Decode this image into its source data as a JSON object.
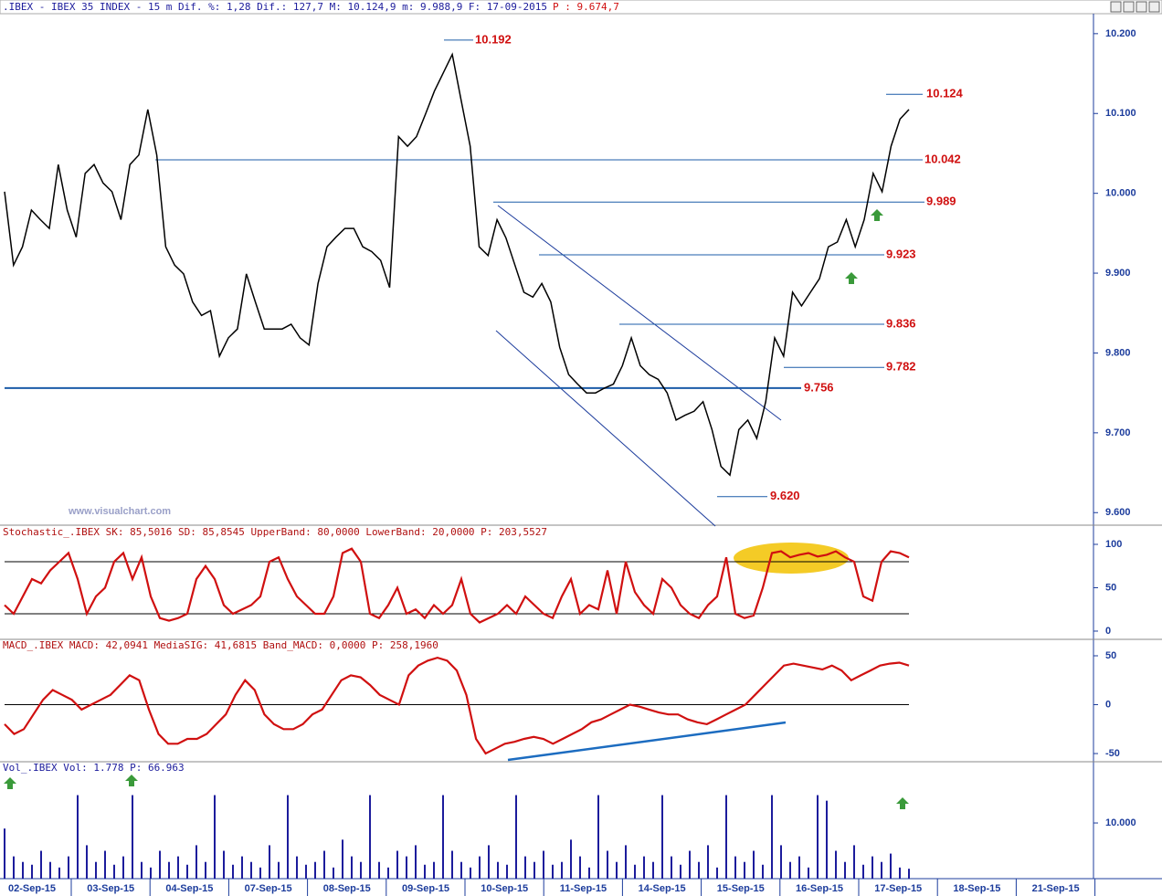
{
  "header": {
    "text": ".IBEX - IBEX 35 INDEX -  15 m Dif. %: 1,28 Dif.: 127,7 M: 10.124,9 m: 9.988,9 F: 17-09-2015",
    "last": "P : 9.674,7"
  },
  "watermark": "www.visualchart.com",
  "x_axis": {
    "labels": [
      "02-Sep-15",
      "03-Sep-15",
      "04-Sep-15",
      "07-Sep-15",
      "08-Sep-15",
      "09-Sep-15",
      "10-Sep-15",
      "11-Sep-15",
      "14-Sep-15",
      "15-Sep-15",
      "16-Sep-15",
      "17-Sep-15",
      "18-Sep-15",
      "21-Sep-15"
    ]
  },
  "chart_data": [
    {
      "type": "line",
      "color": "#000000",
      "values": [
        10002,
        9910,
        9933,
        9979,
        9967,
        9956,
        10036,
        9979,
        9945,
        10025,
        10036,
        10013,
        10002,
        9967,
        10036,
        10048,
        10105,
        10048,
        9933,
        9910,
        9899,
        9864,
        9847,
        9853,
        9796,
        9819,
        9830,
        9899,
        9864,
        9830,
        9830,
        9830,
        9836,
        9819,
        9810,
        9887,
        9933,
        9945,
        9956,
        9956,
        9933,
        9927,
        9916,
        9882,
        10071,
        10059,
        10071,
        10099,
        10128,
        10151,
        10174,
        10116,
        10059,
        9933,
        9922,
        9967,
        9944,
        9910,
        9876,
        9870,
        9887,
        9864,
        9807,
        9773,
        9761,
        9750,
        9750,
        9756,
        9761,
        9784,
        9819,
        9784,
        9773,
        9767,
        9750,
        9716,
        9722,
        9727,
        9739,
        9704,
        9658,
        9647,
        9704,
        9716,
        9693,
        9739,
        9819,
        9796,
        9876,
        9859,
        9876,
        9893,
        9933,
        9939,
        9967,
        9933,
        9967,
        10025,
        10002,
        10059,
        10093,
        10105
      ],
      "levels": [
        {
          "value": 10192,
          "label": "10.192"
        },
        {
          "value": 10124,
          "label": "10.124"
        },
        {
          "value": 10042,
          "label": "10.042"
        },
        {
          "value": 9989,
          "label": "9.989"
        },
        {
          "value": 9923,
          "label": "9.923"
        },
        {
          "value": 9836,
          "label": "9.836"
        },
        {
          "value": 9782,
          "label": "9.782"
        },
        {
          "value": 9756,
          "label": "9.756"
        },
        {
          "value": 9620,
          "label": "9.620"
        }
      ],
      "ylim": [
        9590,
        10225
      ],
      "yticks": [
        {
          "value": 10200,
          "label": "10.200"
        },
        {
          "value": 10100,
          "label": "10.100"
        },
        {
          "value": 10000,
          "label": "10.000"
        },
        {
          "value": 9900,
          "label": "9.900"
        },
        {
          "value": 9800,
          "label": "9.800"
        },
        {
          "value": 9700,
          "label": "9.700"
        },
        {
          "value": 9600,
          "label": "9.600"
        }
      ]
    },
    {
      "type": "line",
      "title": "Stochastic_.IBEX SK: 85,5016 SD: 85,8545 UpperBand: 80,0000 LowerBand: 20,0000 P: 203,5527",
      "color": "#d01010",
      "values": [
        30,
        20,
        40,
        60,
        55,
        70,
        80,
        90,
        60,
        20,
        40,
        50,
        80,
        90,
        60,
        85,
        40,
        15,
        12,
        15,
        20,
        60,
        75,
        60,
        30,
        20,
        25,
        30,
        40,
        80,
        85,
        60,
        40,
        30,
        20,
        20,
        40,
        90,
        95,
        80,
        20,
        15,
        30,
        50,
        20,
        25,
        15,
        30,
        20,
        30,
        60,
        20,
        10,
        15,
        20,
        30,
        20,
        40,
        30,
        20,
        15,
        40,
        60,
        20,
        30,
        25,
        70,
        20,
        80,
        45,
        30,
        20,
        60,
        50,
        30,
        20,
        15,
        30,
        40,
        85,
        20,
        15,
        18,
        50,
        90,
        92,
        85,
        88,
        90,
        86,
        88,
        92,
        85,
        80,
        40,
        35,
        80,
        92,
        90,
        85
      ],
      "bands": [
        80,
        20
      ],
      "ylim": [
        -9.5,
        106.3
      ],
      "yticks": [
        100,
        50,
        0
      ]
    },
    {
      "type": "line",
      "title": "MACD_.IBEX MACD: 42,0941 MediaSIG: 41,6815 Band_MACD: 0,0000 P: 258,1960",
      "color": "#d01010",
      "values": [
        -20,
        -30,
        -25,
        -10,
        5,
        15,
        10,
        5,
        -5,
        0,
        5,
        10,
        20,
        30,
        25,
        -5,
        -30,
        -40,
        -40,
        -35,
        -35,
        -30,
        -20,
        -10,
        10,
        25,
        15,
        -10,
        -20,
        -25,
        -25,
        -20,
        -10,
        -5,
        10,
        25,
        30,
        28,
        20,
        10,
        5,
        0,
        30,
        40,
        45,
        48,
        45,
        35,
        10,
        -35,
        -50,
        -45,
        -40,
        -38,
        -35,
        -33,
        -35,
        -40,
        -35,
        -30,
        -25,
        -18,
        -15,
        -10,
        -5,
        0,
        -2,
        -5,
        -8,
        -10,
        -10,
        -15,
        -18,
        -20,
        -15,
        -10,
        -5,
        0,
        10,
        20,
        30,
        40,
        42,
        40,
        38,
        36,
        40,
        35,
        25,
        30,
        35,
        40,
        42,
        43,
        40
      ],
      "bands": [
        0
      ],
      "ylim": [
        -56.5,
        55.6
      ],
      "yticks": [
        50,
        0,
        -50
      ]
    },
    {
      "type": "bar",
      "title": "Vol_.IBEX Vol: 1.778 P: 66.963",
      "color": "#1c1c9c",
      "values": [
        9000,
        4000,
        3000,
        2500,
        5000,
        3000,
        2000,
        4000,
        15000,
        6000,
        3000,
        5000,
        2500,
        4000,
        15000,
        3000,
        2000,
        5000,
        3000,
        4000,
        2500,
        6000,
        3000,
        15000,
        5000,
        2500,
        4000,
        3000,
        2000,
        6000,
        3000,
        15000,
        4000,
        2500,
        3000,
        5000,
        2000,
        7000,
        4000,
        3000,
        15000,
        3000,
        2000,
        5000,
        4000,
        6000,
        2500,
        3000,
        15000,
        5000,
        3000,
        2000,
        4000,
        6000,
        3000,
        2500,
        15000,
        4000,
        3000,
        5000,
        2500,
        3000,
        7000,
        4000,
        2000,
        15000,
        5000,
        3000,
        6000,
        2500,
        4000,
        3000,
        15000,
        4000,
        2500,
        5000,
        3000,
        6000,
        2000,
        15000,
        4000,
        3000,
        5000,
        2500,
        15000,
        6000,
        3000,
        4000,
        2000,
        15000,
        14000,
        5000,
        3000,
        6000,
        2500,
        4000,
        3000,
        4500,
        2000,
        1778
      ],
      "ylim": [
        0,
        18700
      ],
      "yticks": [
        {
          "value": 10000,
          "label": "10.000"
        }
      ]
    }
  ]
}
